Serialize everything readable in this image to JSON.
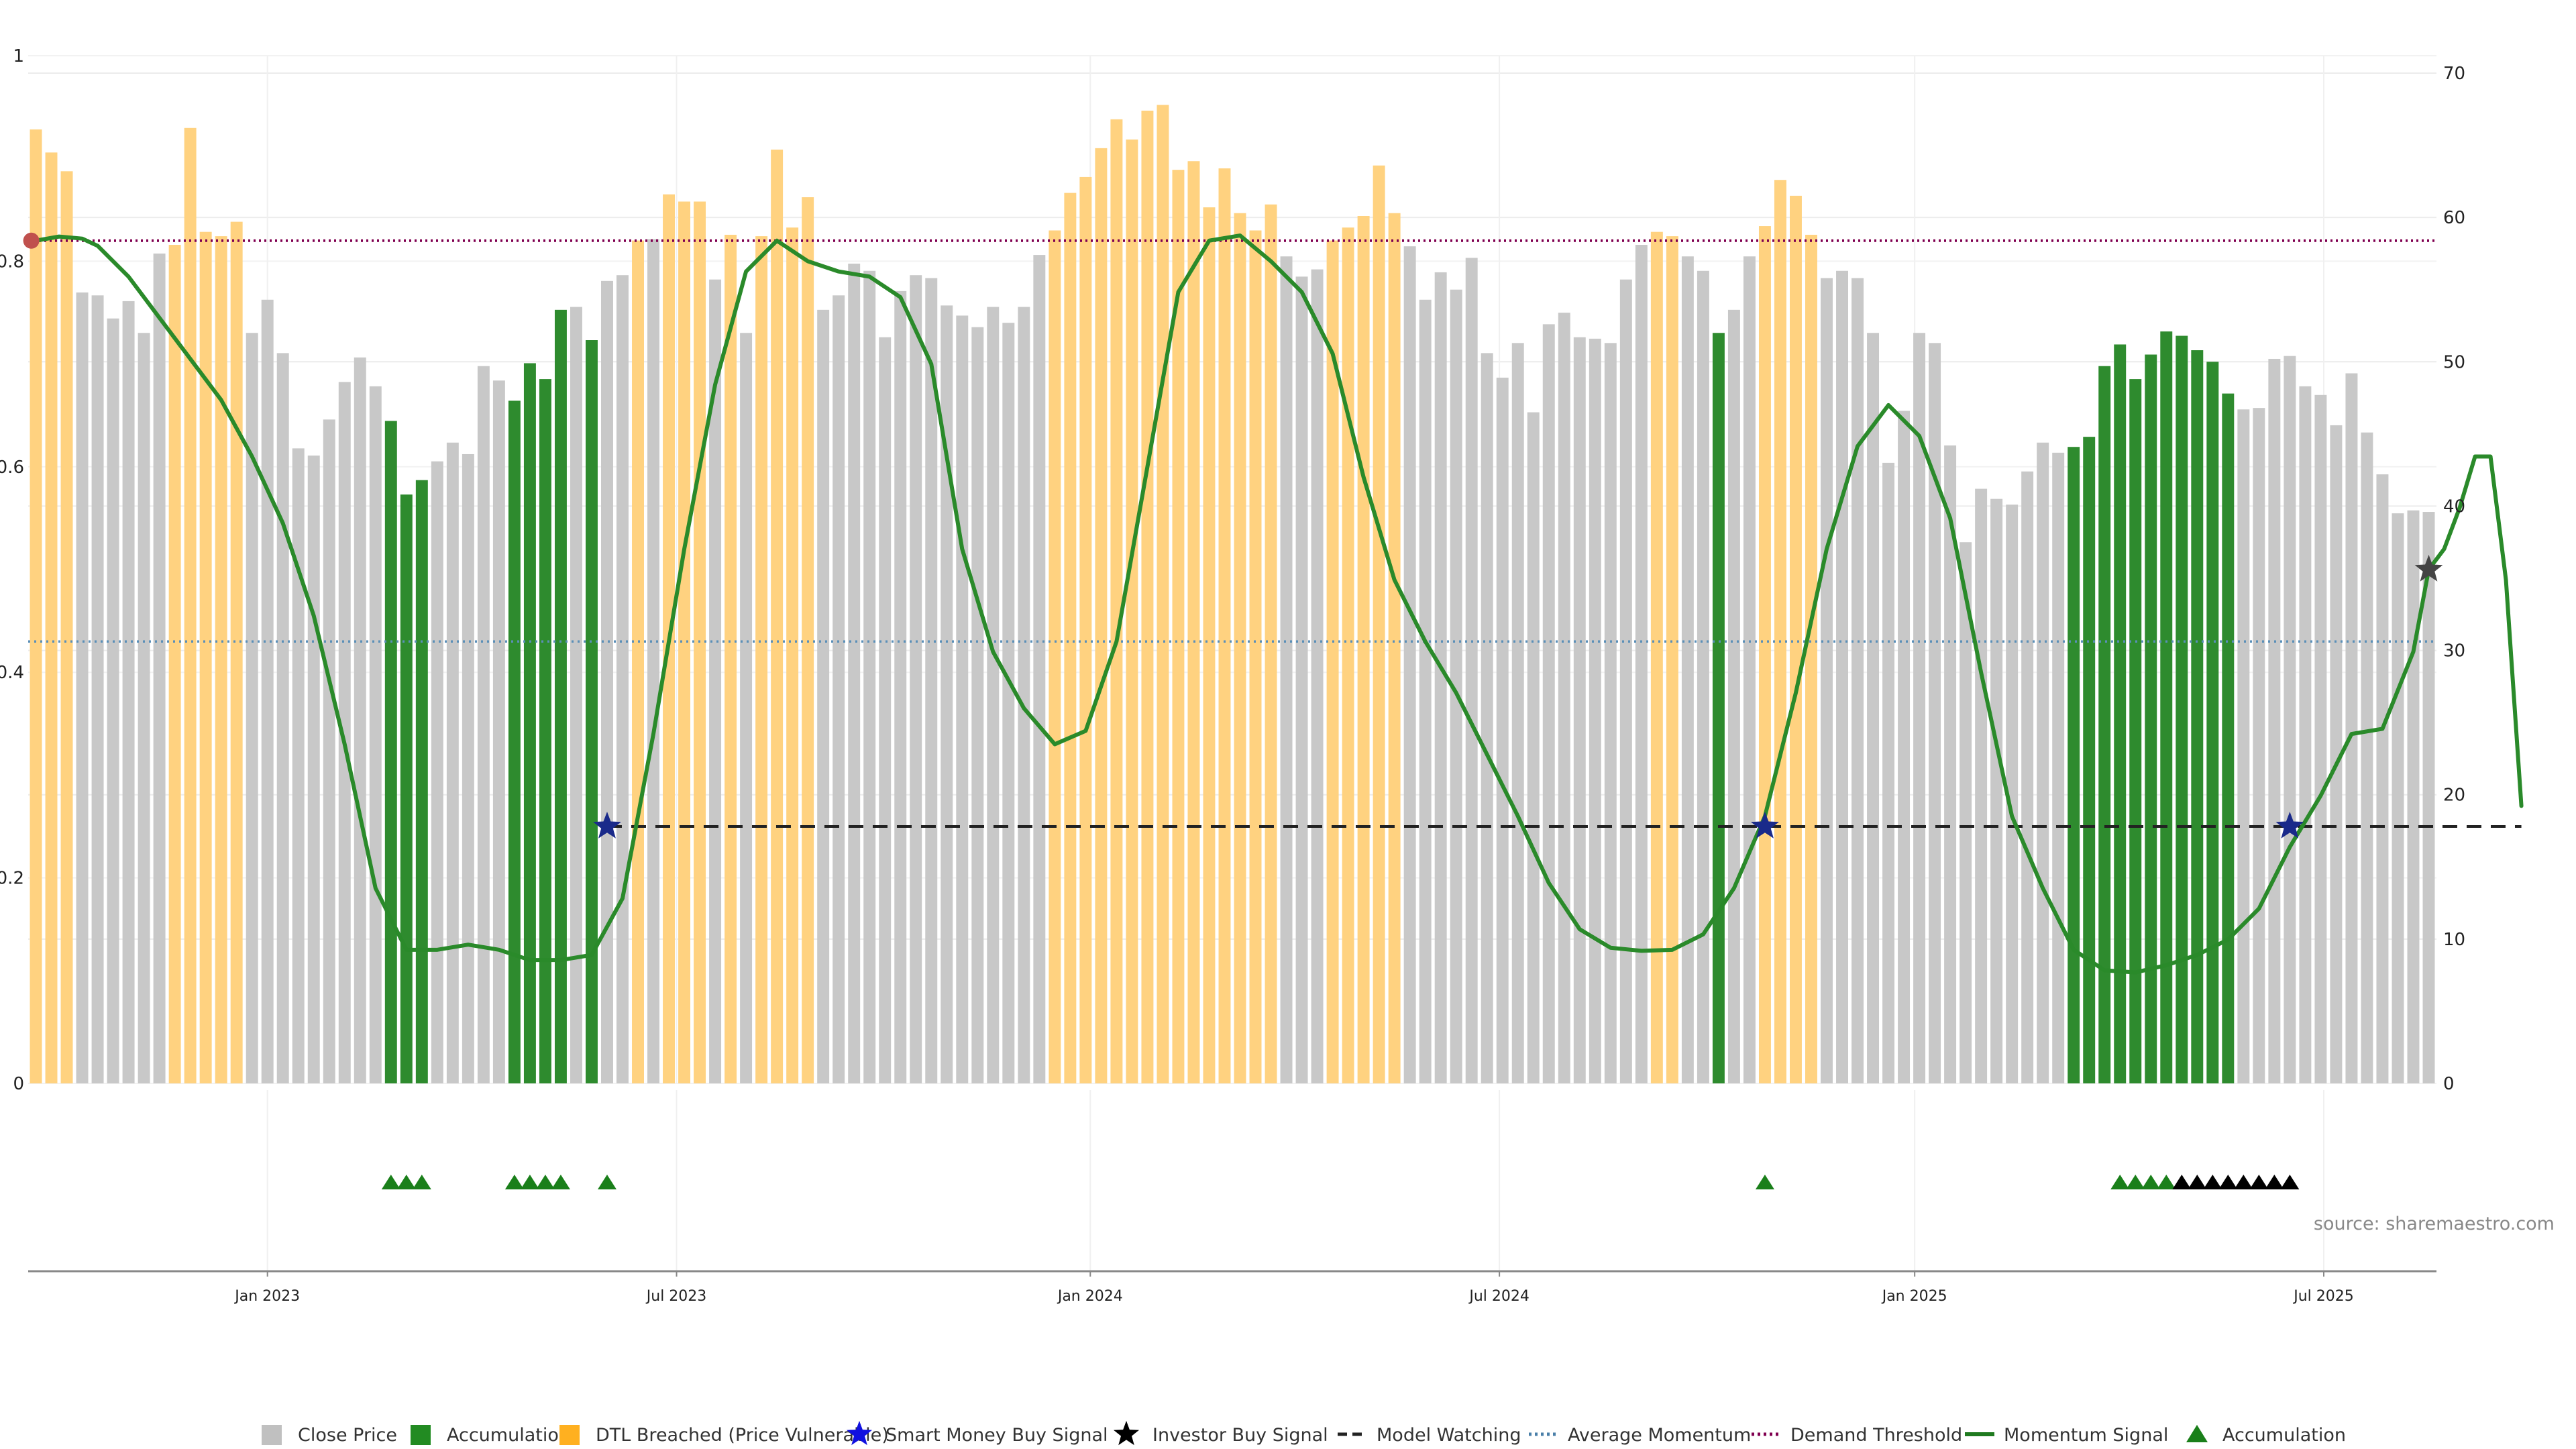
{
  "source": "source: sharemaestro.com",
  "chart_data": {
    "type": "bar",
    "left_axis": {
      "ticks": [
        "0",
        "0.2",
        "0.4",
        "0.6",
        "0.8",
        "1"
      ],
      "ylim": [
        0,
        1
      ]
    },
    "right_axis": {
      "ticks": [
        "0",
        "10",
        "20",
        "30",
        "40",
        "50",
        "60",
        "70"
      ],
      "ylim": [
        0,
        70
      ]
    },
    "x_axis": {
      "ticks": [
        "Jan 2023",
        "Jul 2023",
        "Jan 2024",
        "Jul 2024",
        "Jan 2025",
        "Jul 2025"
      ]
    },
    "grid": true,
    "legend_position": "bottom",
    "legend": [
      {
        "label": "Close Price",
        "marker": "square",
        "color": "#c0c0c0"
      },
      {
        "label": "Accumulation",
        "marker": "square",
        "color": "#228b22"
      },
      {
        "label": "DTL Breached (Price Vulnerable)",
        "marker": "square",
        "color": "#ffb020"
      },
      {
        "label": "Smart Money Buy Signal",
        "marker": "star",
        "color": "#1010e0"
      },
      {
        "label": "Investor Buy Signal",
        "marker": "star",
        "color": "#000000"
      },
      {
        "label": "Model Watching",
        "marker": "dashed-line",
        "color": "#222222"
      },
      {
        "label": "Average Momentum",
        "marker": "dotted-line",
        "color": "#4a7fa8"
      },
      {
        "label": "Demand Threshold",
        "marker": "dotted-line",
        "color": "#800050"
      },
      {
        "label": "Momentum Signal",
        "marker": "line",
        "color": "#1f7a1f"
      },
      {
        "label": "Accumulation",
        "marker": "triangle",
        "color": "#1a7f1a"
      }
    ],
    "bars": [
      {
        "v": 66.1,
        "c": "d"
      },
      {
        "v": 64.5,
        "c": "d"
      },
      {
        "v": 63.2,
        "c": "d"
      },
      {
        "v": 54.8,
        "c": "g"
      },
      {
        "v": 54.6,
        "c": "g"
      },
      {
        "v": 53.0,
        "c": "g"
      },
      {
        "v": 54.2,
        "c": "g"
      },
      {
        "v": 52.0,
        "c": "g"
      },
      {
        "v": 57.5,
        "c": "g"
      },
      {
        "v": 58.1,
        "c": "d"
      },
      {
        "v": 66.2,
        "c": "d"
      },
      {
        "v": 59.0,
        "c": "d"
      },
      {
        "v": 58.7,
        "c": "d"
      },
      {
        "v": 59.7,
        "c": "d"
      },
      {
        "v": 52.0,
        "c": "g"
      },
      {
        "v": 54.3,
        "c": "g"
      },
      {
        "v": 50.6,
        "c": "g"
      },
      {
        "v": 44.0,
        "c": "g"
      },
      {
        "v": 43.5,
        "c": "g"
      },
      {
        "v": 46.0,
        "c": "g"
      },
      {
        "v": 48.6,
        "c": "g"
      },
      {
        "v": 50.3,
        "c": "g"
      },
      {
        "v": 48.3,
        "c": "g"
      },
      {
        "v": 45.9,
        "c": "a"
      },
      {
        "v": 40.8,
        "c": "a"
      },
      {
        "v": 41.8,
        "c": "a"
      },
      {
        "v": 43.1,
        "c": "g"
      },
      {
        "v": 44.4,
        "c": "g"
      },
      {
        "v": 43.6,
        "c": "g"
      },
      {
        "v": 49.7,
        "c": "g"
      },
      {
        "v": 48.7,
        "c": "g"
      },
      {
        "v": 47.3,
        "c": "a"
      },
      {
        "v": 49.9,
        "c": "a"
      },
      {
        "v": 48.8,
        "c": "a"
      },
      {
        "v": 53.6,
        "c": "a"
      },
      {
        "v": 53.8,
        "c": "g"
      },
      {
        "v": 51.5,
        "c": "a"
      },
      {
        "v": 55.6,
        "c": "g"
      },
      {
        "v": 56.0,
        "c": "g"
      },
      {
        "v": 58.4,
        "c": "d"
      },
      {
        "v": 58.5,
        "c": "g"
      },
      {
        "v": 61.6,
        "c": "d"
      },
      {
        "v": 61.1,
        "c": "d"
      },
      {
        "v": 61.1,
        "c": "d"
      },
      {
        "v": 55.7,
        "c": "g"
      },
      {
        "v": 58.8,
        "c": "d"
      },
      {
        "v": 52.0,
        "c": "g"
      },
      {
        "v": 58.7,
        "c": "d"
      },
      {
        "v": 64.7,
        "c": "d"
      },
      {
        "v": 59.3,
        "c": "d"
      },
      {
        "v": 61.4,
        "c": "d"
      },
      {
        "v": 53.6,
        "c": "g"
      },
      {
        "v": 54.6,
        "c": "g"
      },
      {
        "v": 56.8,
        "c": "g"
      },
      {
        "v": 56.3,
        "c": "g"
      },
      {
        "v": 51.7,
        "c": "g"
      },
      {
        "v": 54.9,
        "c": "g"
      },
      {
        "v": 56.0,
        "c": "g"
      },
      {
        "v": 55.8,
        "c": "g"
      },
      {
        "v": 53.9,
        "c": "g"
      },
      {
        "v": 53.2,
        "c": "g"
      },
      {
        "v": 52.4,
        "c": "g"
      },
      {
        "v": 53.8,
        "c": "g"
      },
      {
        "v": 52.7,
        "c": "g"
      },
      {
        "v": 53.8,
        "c": "g"
      },
      {
        "v": 57.4,
        "c": "g"
      },
      {
        "v": 59.1,
        "c": "d"
      },
      {
        "v": 61.7,
        "c": "d"
      },
      {
        "v": 62.8,
        "c": "d"
      },
      {
        "v": 64.8,
        "c": "d"
      },
      {
        "v": 66.8,
        "c": "d"
      },
      {
        "v": 65.4,
        "c": "d"
      },
      {
        "v": 67.4,
        "c": "d"
      },
      {
        "v": 67.8,
        "c": "d"
      },
      {
        "v": 63.3,
        "c": "d"
      },
      {
        "v": 63.9,
        "c": "d"
      },
      {
        "v": 60.7,
        "c": "d"
      },
      {
        "v": 63.4,
        "c": "d"
      },
      {
        "v": 60.3,
        "c": "d"
      },
      {
        "v": 59.1,
        "c": "d"
      },
      {
        "v": 60.9,
        "c": "d"
      },
      {
        "v": 57.3,
        "c": "g"
      },
      {
        "v": 55.9,
        "c": "g"
      },
      {
        "v": 56.4,
        "c": "g"
      },
      {
        "v": 58.4,
        "c": "d"
      },
      {
        "v": 59.3,
        "c": "d"
      },
      {
        "v": 60.1,
        "c": "d"
      },
      {
        "v": 63.6,
        "c": "d"
      },
      {
        "v": 60.3,
        "c": "d"
      },
      {
        "v": 58.0,
        "c": "g"
      },
      {
        "v": 54.3,
        "c": "g"
      },
      {
        "v": 56.2,
        "c": "g"
      },
      {
        "v": 55.0,
        "c": "g"
      },
      {
        "v": 57.2,
        "c": "g"
      },
      {
        "v": 50.6,
        "c": "g"
      },
      {
        "v": 48.9,
        "c": "g"
      },
      {
        "v": 51.3,
        "c": "g"
      },
      {
        "v": 46.5,
        "c": "g"
      },
      {
        "v": 52.6,
        "c": "g"
      },
      {
        "v": 53.4,
        "c": "g"
      },
      {
        "v": 51.7,
        "c": "g"
      },
      {
        "v": 51.6,
        "c": "g"
      },
      {
        "v": 51.3,
        "c": "g"
      },
      {
        "v": 55.7,
        "c": "g"
      },
      {
        "v": 58.1,
        "c": "g"
      },
      {
        "v": 59.0,
        "c": "d"
      },
      {
        "v": 58.7,
        "c": "d"
      },
      {
        "v": 57.3,
        "c": "g"
      },
      {
        "v": 56.3,
        "c": "g"
      },
      {
        "v": 52.0,
        "c": "a"
      },
      {
        "v": 53.6,
        "c": "g"
      },
      {
        "v": 57.3,
        "c": "g"
      },
      {
        "v": 59.4,
        "c": "d"
      },
      {
        "v": 62.6,
        "c": "d"
      },
      {
        "v": 61.5,
        "c": "d"
      },
      {
        "v": 58.8,
        "c": "d"
      },
      {
        "v": 55.8,
        "c": "g"
      },
      {
        "v": 56.3,
        "c": "g"
      },
      {
        "v": 55.8,
        "c": "g"
      },
      {
        "v": 52.0,
        "c": "g"
      },
      {
        "v": 43.0,
        "c": "g"
      },
      {
        "v": 46.6,
        "c": "g"
      },
      {
        "v": 52.0,
        "c": "g"
      },
      {
        "v": 51.3,
        "c": "g"
      },
      {
        "v": 44.2,
        "c": "g"
      },
      {
        "v": 37.5,
        "c": "g"
      },
      {
        "v": 41.2,
        "c": "g"
      },
      {
        "v": 40.5,
        "c": "g"
      },
      {
        "v": 40.1,
        "c": "g"
      },
      {
        "v": 42.4,
        "c": "g"
      },
      {
        "v": 44.4,
        "c": "g"
      },
      {
        "v": 43.7,
        "c": "g"
      },
      {
        "v": 44.1,
        "c": "a"
      },
      {
        "v": 44.8,
        "c": "a"
      },
      {
        "v": 49.7,
        "c": "a"
      },
      {
        "v": 51.2,
        "c": "a"
      },
      {
        "v": 48.8,
        "c": "a"
      },
      {
        "v": 50.5,
        "c": "a"
      },
      {
        "v": 52.1,
        "c": "a"
      },
      {
        "v": 51.8,
        "c": "a"
      },
      {
        "v": 50.8,
        "c": "a"
      },
      {
        "v": 50.0,
        "c": "a"
      },
      {
        "v": 47.8,
        "c": "a"
      },
      {
        "v": 46.7,
        "c": "g"
      },
      {
        "v": 46.8,
        "c": "g"
      },
      {
        "v": 50.2,
        "c": "g"
      },
      {
        "v": 50.4,
        "c": "g"
      },
      {
        "v": 48.3,
        "c": "g"
      },
      {
        "v": 47.7,
        "c": "g"
      },
      {
        "v": 45.6,
        "c": "g"
      },
      {
        "v": 49.2,
        "c": "g"
      },
      {
        "v": 45.1,
        "c": "g"
      },
      {
        "v": 42.2,
        "c": "g"
      },
      {
        "v": 39.5,
        "c": "g"
      },
      {
        "v": 39.7,
        "c": "g"
      },
      {
        "v": 39.6,
        "c": "g"
      }
    ],
    "momentum": [
      [
        0,
        0.82
      ],
      [
        1.5,
        0.824
      ],
      [
        3,
        0.822
      ],
      [
        4,
        0.815
      ],
      [
        6,
        0.785
      ],
      [
        8,
        0.745
      ],
      [
        10,
        0.705
      ],
      [
        12,
        0.665
      ],
      [
        14,
        0.61
      ],
      [
        16,
        0.545
      ],
      [
        18,
        0.455
      ],
      [
        20,
        0.33
      ],
      [
        22,
        0.19
      ],
      [
        24,
        0.13
      ],
      [
        26,
        0.13
      ],
      [
        28,
        0.135
      ],
      [
        30,
        0.13
      ],
      [
        32,
        0.12
      ],
      [
        34,
        0.12
      ],
      [
        36,
        0.125
      ],
      [
        38,
        0.18
      ],
      [
        40,
        0.34
      ],
      [
        42,
        0.52
      ],
      [
        44,
        0.68
      ],
      [
        46,
        0.79
      ],
      [
        48,
        0.82
      ],
      [
        50,
        0.8
      ],
      [
        52,
        0.79
      ],
      [
        54,
        0.785
      ],
      [
        56,
        0.765
      ],
      [
        58,
        0.7
      ],
      [
        60,
        0.52
      ],
      [
        62,
        0.42
      ],
      [
        64,
        0.365
      ],
      [
        66,
        0.33
      ],
      [
        68,
        0.343
      ],
      [
        70,
        0.43
      ],
      [
        72,
        0.6
      ],
      [
        74,
        0.77
      ],
      [
        76,
        0.82
      ],
      [
        78,
        0.825
      ],
      [
        80,
        0.8
      ],
      [
        82,
        0.77
      ],
      [
        84,
        0.71
      ],
      [
        86,
        0.59
      ],
      [
        88,
        0.49
      ],
      [
        90,
        0.43
      ],
      [
        92,
        0.38
      ],
      [
        94,
        0.32
      ],
      [
        96,
        0.26
      ],
      [
        98,
        0.195
      ],
      [
        100,
        0.15
      ],
      [
        102,
        0.132
      ],
      [
        104,
        0.129
      ],
      [
        106,
        0.13
      ],
      [
        108,
        0.145
      ],
      [
        110,
        0.19
      ],
      [
        112,
        0.26
      ],
      [
        114,
        0.38
      ],
      [
        116,
        0.52
      ],
      [
        118,
        0.62
      ],
      [
        120,
        0.66
      ],
      [
        122,
        0.63
      ],
      [
        124,
        0.55
      ],
      [
        126,
        0.4
      ],
      [
        128,
        0.26
      ],
      [
        130,
        0.19
      ],
      [
        132,
        0.13
      ],
      [
        134,
        0.11
      ],
      [
        136,
        0.108
      ],
      [
        138,
        0.115
      ],
      [
        140,
        0.125
      ],
      [
        142,
        0.14
      ],
      [
        144,
        0.17
      ],
      [
        146,
        0.23
      ],
      [
        148,
        0.28
      ],
      [
        150,
        0.34
      ],
      [
        152,
        0.345
      ],
      [
        154,
        0.42
      ],
      [
        155,
        0.5
      ],
      [
        156,
        0.52
      ],
      [
        157,
        0.56
      ],
      [
        158,
        0.61
      ],
      [
        159,
        0.61
      ],
      [
        160,
        0.49
      ],
      [
        161,
        0.27
      ]
    ],
    "watch_line": {
      "start": 37,
      "end": 161,
      "value": 0.25
    },
    "average_momentum": 0.43,
    "demand_threshold": 0.82,
    "smart_money_signals": [
      {
        "i": 37,
        "v": 0.25
      },
      {
        "i": 112,
        "v": 0.25
      },
      {
        "i": 146,
        "v": 0.25
      }
    ],
    "investor_signals": [
      {
        "i": 155,
        "v": 0.5
      }
    ],
    "start_marker": {
      "i": 0,
      "v": 0.82
    },
    "accumulation_markers": [
      {
        "i": 23,
        "c": "g"
      },
      {
        "i": 24,
        "c": "g"
      },
      {
        "i": 25,
        "c": "g"
      },
      {
        "i": 31,
        "c": "g"
      },
      {
        "i": 32,
        "c": "g"
      },
      {
        "i": 33,
        "c": "g"
      },
      {
        "i": 34,
        "c": "g"
      },
      {
        "i": 37,
        "c": "g"
      },
      {
        "i": 112,
        "c": "g"
      },
      {
        "i": 135,
        "c": "g"
      },
      {
        "i": 136,
        "c": "g"
      },
      {
        "i": 137,
        "c": "g"
      },
      {
        "i": 138,
        "c": "g"
      },
      {
        "i": 139,
        "c": "k"
      },
      {
        "i": 140,
        "c": "k"
      },
      {
        "i": 141,
        "c": "k"
      },
      {
        "i": 142,
        "c": "k"
      },
      {
        "i": 143,
        "c": "k"
      },
      {
        "i": 144,
        "c": "k"
      },
      {
        "i": 145,
        "c": "k"
      },
      {
        "i": 146,
        "c": "k"
      }
    ],
    "colors": {
      "close": "#c8c8c8",
      "accumulation": "#2e8b2e",
      "dtl": "#ffd280",
      "momentum": "#2a8a2a",
      "watch": "#222222",
      "average": "#5a8fb8",
      "demand": "#800050",
      "smart": "#1a2a8a",
      "investor": "#444444",
      "start_marker": "#c0504d",
      "tri_green": "#1a7f1a",
      "tri_black": "#000000"
    }
  }
}
